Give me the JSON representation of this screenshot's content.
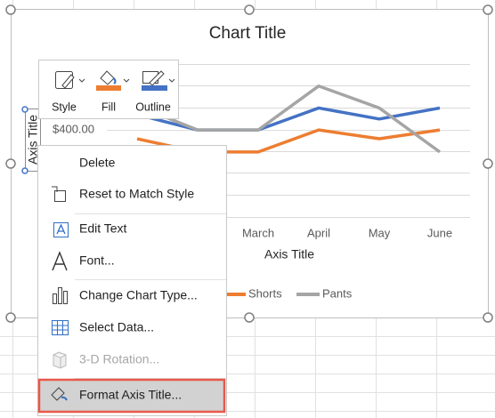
{
  "chart_data": {
    "type": "line",
    "title": "Chart Title",
    "x_axis_title": "Axis Title",
    "y_axis_title": "Axis Title",
    "categories": [
      null,
      null,
      "March",
      "April",
      "May",
      "June"
    ],
    "series": [
      {
        "name": null,
        "color": "#4472c4",
        "values": [
          470,
          400,
          400,
          500,
          450,
          500
        ]
      },
      {
        "name": "Shorts",
        "color": "#ed7d31",
        "values": [
          360,
          300,
          300,
          400,
          360,
          400
        ]
      },
      {
        "name": "Pants",
        "color": "#a5a5a5",
        "values": [
          510,
          400,
          400,
          600,
          500,
          300
        ]
      }
    ],
    "ylim": [
      0,
      700
    ],
    "yticks": [
      {
        "value": 400,
        "label": "$400.00"
      }
    ],
    "grid": true
  },
  "toolbar": {
    "buttons": [
      "Style",
      "Fill",
      "Outline"
    ]
  },
  "context_menu": {
    "items": [
      {
        "label": "Delete",
        "disabled": false
      },
      {
        "label": "Reset to Match Style",
        "disabled": false
      },
      {
        "label": "Edit Text",
        "disabled": false
      },
      {
        "label": "Font...",
        "disabled": false
      },
      {
        "label": "Change Chart Type...",
        "disabled": false
      },
      {
        "label": "Select Data...",
        "disabled": false
      },
      {
        "label": "3-D Rotation...",
        "disabled": true
      },
      {
        "label": "Format Axis Title...",
        "disabled": false
      }
    ]
  }
}
